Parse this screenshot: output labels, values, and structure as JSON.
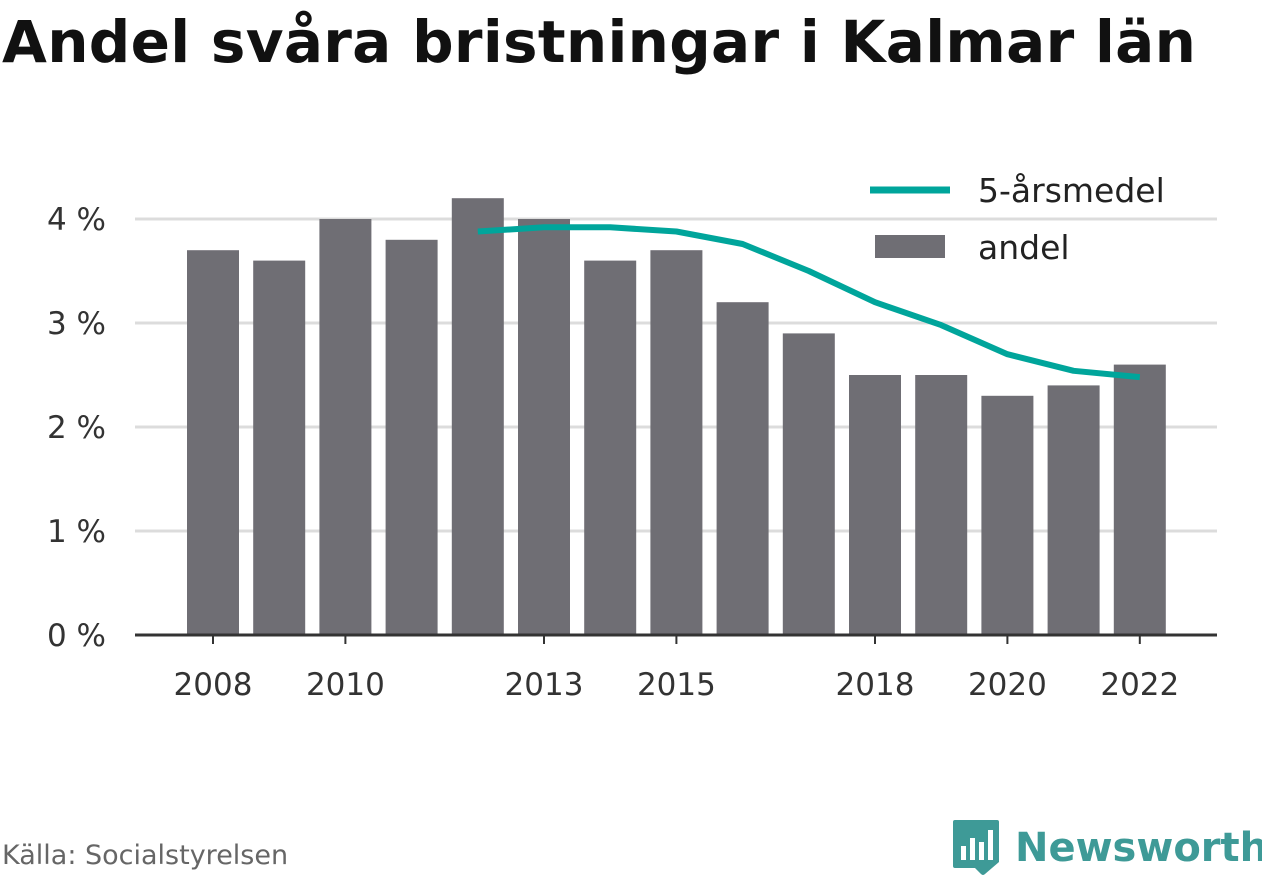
{
  "title": "Andel svåra bristningar i Kalmar län",
  "source": "Källa: Socialstyrelsen",
  "brand": {
    "name": "Newsworthy",
    "icon": "newsworthy-chart-logo-icon"
  },
  "colors": {
    "bar": "#6f6e74",
    "line": "#00a59b",
    "grid": "#dcdcdc",
    "axis": "#333333",
    "brand": "#3e9a97"
  },
  "chart_data": {
    "type": "bar",
    "x": [
      2008,
      2009,
      2010,
      2011,
      2012,
      2013,
      2014,
      2015,
      2016,
      2017,
      2018,
      2019,
      2020,
      2021,
      2022
    ],
    "series": [
      {
        "name": "andel",
        "type": "bar",
        "values": [
          3.7,
          3.6,
          4.0,
          3.8,
          4.2,
          4.0,
          3.6,
          3.7,
          3.2,
          2.9,
          2.5,
          2.5,
          2.3,
          2.4,
          2.6
        ]
      },
      {
        "name": "5-årsmedel",
        "type": "line",
        "values": [
          null,
          null,
          null,
          null,
          3.88,
          3.92,
          3.92,
          3.88,
          3.76,
          3.5,
          3.2,
          2.98,
          2.7,
          2.54,
          2.48
        ]
      }
    ],
    "x_tick_labels": [
      "2008",
      "2010",
      "2013",
      "2015",
      "2018",
      "2020",
      "2022"
    ],
    "y_ticks": [
      0,
      1,
      2,
      3,
      4
    ],
    "y_tick_labels": [
      "0 %",
      "1 %",
      "2 %",
      "3 %",
      "4 %"
    ],
    "ylim": [
      0,
      4.3
    ],
    "grid": true,
    "legend": "top-right"
  }
}
